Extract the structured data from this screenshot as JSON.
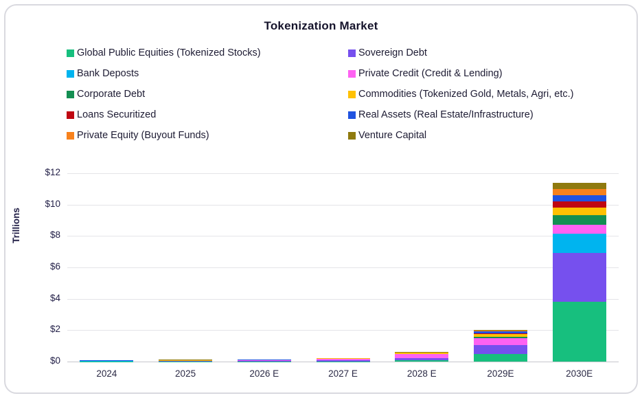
{
  "title": "Tokenization Market",
  "y_axis": {
    "label": "Trillions"
  },
  "chart_data": {
    "type": "bar",
    "stacked": true,
    "title": "Tokenization Market",
    "xlabel": "",
    "ylabel": "Trillions",
    "ylim": [
      0,
      12
    ],
    "y_ticks_top_to_bottom": [
      "$12",
      "$10",
      "$8",
      "$6",
      "$4",
      "$2",
      "$0"
    ],
    "grid": "horizontal",
    "legend_position": "top, two columns",
    "categories": [
      "2024",
      "2025",
      "2026 E",
      "2027 E",
      "2028 E",
      "2029E",
      "2030E"
    ],
    "series": [
      {
        "name": "Global Public Equities (Tokenized Stocks)",
        "color": "#17bf7e",
        "values": [
          0.01,
          0.01,
          0.015,
          0.02,
          0.08,
          0.5,
          3.8
        ]
      },
      {
        "name": "Sovereign Debt",
        "color": "#7650ee",
        "values": [
          0.01,
          0.015,
          0.03,
          0.05,
          0.15,
          0.55,
          3.1
        ]
      },
      {
        "name": "Bank Deposts",
        "color": "#00b4ef",
        "values": [
          0.005,
          0.005,
          0.005,
          0.005,
          0.0,
          0.02,
          1.25
        ]
      },
      {
        "name": "Private Credit (Credit & Lending)",
        "color": "#fe62f2",
        "values": [
          0.01,
          0.02,
          0.03,
          0.1,
          0.25,
          0.4,
          0.55
        ]
      },
      {
        "name": "Corporate Debt",
        "color": "#148f52",
        "values": [
          0.005,
          0.005,
          0.005,
          0.01,
          0.01,
          0.1,
          0.65
        ]
      },
      {
        "name": "Commodities (Tokenized Gold, Metals, Agri, etc.)",
        "color": "#ffc103",
        "values": [
          0.02,
          0.025,
          0.02,
          0.02,
          0.06,
          0.2,
          0.45
        ]
      },
      {
        "name": "Loans Securitized",
        "color": "#bf0712",
        "values": [
          0.005,
          0.005,
          0.005,
          0.01,
          0.01,
          0.02,
          0.4
        ]
      },
      {
        "name": "Real Assets (Real Estate/Infrastructure)",
        "color": "#2053e0",
        "values": [
          0.005,
          0.005,
          0.005,
          0.005,
          0.01,
          0.15,
          0.4
        ]
      },
      {
        "name": "Private Equity (Buyout Funds)",
        "color": "#f8821c",
        "values": [
          0.01,
          0.01,
          0.01,
          0.005,
          0.01,
          0.03,
          0.4
        ]
      },
      {
        "name": "Venture Capital",
        "color": "#8f7a0e",
        "values": [
          0.02,
          0.02,
          0.015,
          0.005,
          0.02,
          0.03,
          0.4
        ]
      }
    ]
  }
}
